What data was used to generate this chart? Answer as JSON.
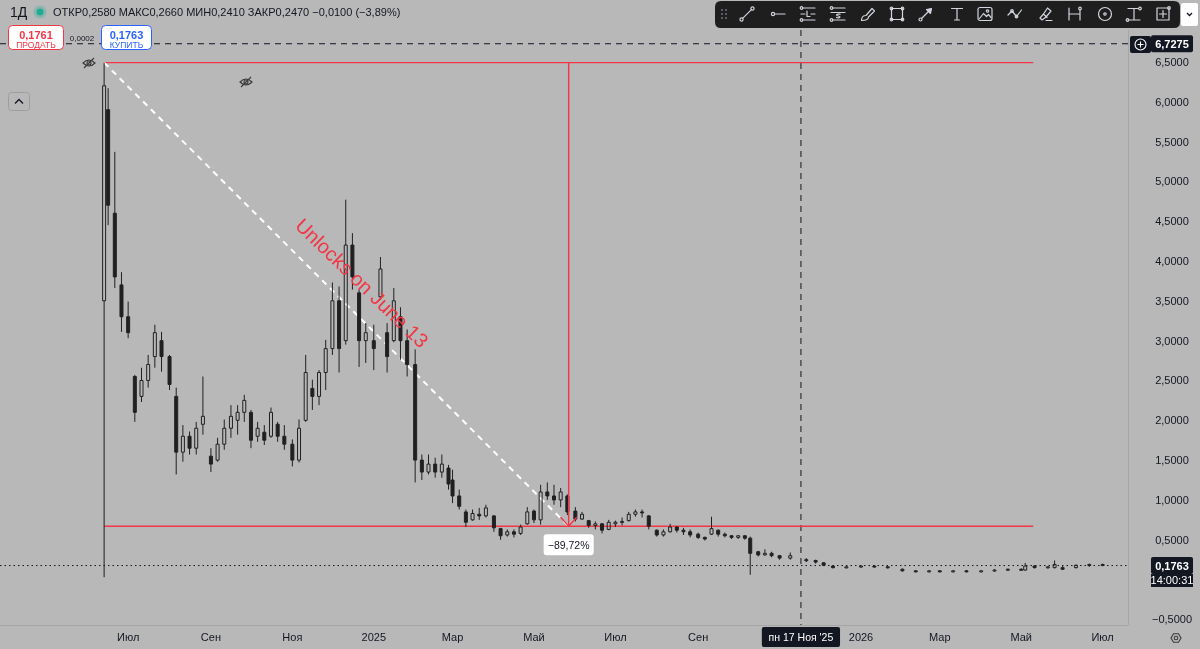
{
  "chart_data": {
    "type": "candlestick",
    "title": "1Д",
    "subtitle": "ОТКР0,2580 МАКС0,2660 МИН0,2410 ЗАКР0,2470 −0,0100 (−3,89%)",
    "color": "#202020",
    "x": [
      "2024-06-13",
      "2024-06-16",
      "2024-06-21",
      "2024-06-26",
      "2024-07-01",
      "2024-07-06",
      "2024-07-11",
      "2024-07-16",
      "2024-07-21",
      "2024-07-26",
      "2024-08-01",
      "2024-08-06",
      "2024-08-11",
      "2024-08-16",
      "2024-08-21",
      "2024-08-26",
      "2024-09-01",
      "2024-09-06",
      "2024-09-11",
      "2024-09-16",
      "2024-09-21",
      "2024-09-26",
      "2024-10-01",
      "2024-10-06",
      "2024-10-11",
      "2024-10-16",
      "2024-10-21",
      "2024-10-26",
      "2024-11-01",
      "2024-11-06",
      "2024-11-11",
      "2024-11-16",
      "2024-11-21",
      "2024-11-26",
      "2024-12-01",
      "2024-12-06",
      "2024-12-11",
      "2024-12-16",
      "2024-12-21",
      "2024-12-26",
      "2025-01-01",
      "2025-01-06",
      "2025-01-11",
      "2025-01-16",
      "2025-01-21",
      "2025-01-26",
      "2025-02-01",
      "2025-02-06",
      "2025-02-11",
      "2025-02-16",
      "2025-02-21",
      "2025-02-26",
      "2025-03-01",
      "2025-03-06",
      "2025-03-11",
      "2025-03-16",
      "2025-03-21",
      "2025-03-26",
      "2025-04-01",
      "2025-04-06",
      "2025-04-11",
      "2025-04-16",
      "2025-04-21",
      "2025-04-26",
      "2025-05-01",
      "2025-05-06",
      "2025-05-11",
      "2025-05-16",
      "2025-05-21",
      "2025-05-26",
      "2025-06-01",
      "2025-06-06",
      "2025-06-11",
      "2025-06-16",
      "2025-06-21",
      "2025-06-26",
      "2025-07-01",
      "2025-07-06",
      "2025-07-11",
      "2025-07-16",
      "2025-07-21",
      "2025-07-26",
      "2025-08-01",
      "2025-08-06",
      "2025-08-11",
      "2025-08-16",
      "2025-08-21",
      "2025-08-26",
      "2025-09-01",
      "2025-09-06",
      "2025-09-11",
      "2025-09-16",
      "2025-09-21",
      "2025-09-26",
      "2025-10-01",
      "2025-10-06",
      "2025-10-10",
      "2025-10-16",
      "2025-10-21",
      "2025-10-26",
      "2025-11-01",
      "2025-11-09",
      "2025-11-21",
      "2025-11-28",
      "2025-12-04",
      "2025-12-11",
      "2025-12-21",
      "2026-01-01",
      "2026-01-11",
      "2026-01-21",
      "2026-02-01",
      "2026-02-11",
      "2026-02-21",
      "2026-03-01",
      "2026-03-11",
      "2026-03-21",
      "2026-04-01",
      "2026-04-11",
      "2026-04-21",
      "2026-05-01",
      "2026-05-04",
      "2026-05-11",
      "2026-05-21",
      "2026-05-26",
      "2026-06-01",
      "2026-06-11",
      "2026-06-21",
      "2026-07-01"
    ],
    "ohlc": [
      [
        3.5,
        6.49,
        0.03,
        6.2
      ],
      [
        5.9,
        6.17,
        4.45,
        4.7
      ],
      [
        4.6,
        5.37,
        3.66,
        3.8
      ],
      [
        3.7,
        3.86,
        3.11,
        3.3
      ],
      [
        3.3,
        3.49,
        3.03,
        3.1
      ],
      [
        2.55,
        2.57,
        1.98,
        2.1
      ],
      [
        2.3,
        2.66,
        2.23,
        2.5
      ],
      [
        2.5,
        2.82,
        2.41,
        2.7
      ],
      [
        2.8,
        3.2,
        2.66,
        3.1
      ],
      [
        3.0,
        3.11,
        2.61,
        2.8
      ],
      [
        2.8,
        2.82,
        2.38,
        2.45
      ],
      [
        2.3,
        2.41,
        1.32,
        1.6
      ],
      [
        1.6,
        1.94,
        1.48,
        1.8
      ],
      [
        1.8,
        1.86,
        1.57,
        1.65
      ],
      [
        1.65,
        1.98,
        1.57,
        1.9
      ],
      [
        1.95,
        2.55,
        1.82,
        2.05
      ],
      [
        1.55,
        1.65,
        1.35,
        1.45
      ],
      [
        1.5,
        1.78,
        1.48,
        1.7
      ],
      [
        1.7,
        2.01,
        1.63,
        1.9
      ],
      [
        1.9,
        2.19,
        1.78,
        2.05
      ],
      [
        2.0,
        2.19,
        1.82,
        2.1
      ],
      [
        2.1,
        2.32,
        1.98,
        2.25
      ],
      [
        2.1,
        2.13,
        1.65,
        1.75
      ],
      [
        1.8,
        1.98,
        1.73,
        1.9
      ],
      [
        1.85,
        1.94,
        1.69,
        1.75
      ],
      [
        1.8,
        2.16,
        1.78,
        2.1
      ],
      [
        1.95,
        1.98,
        1.73,
        1.8
      ],
      [
        1.8,
        1.94,
        1.63,
        1.7
      ],
      [
        1.7,
        1.76,
        1.42,
        1.5
      ],
      [
        1.5,
        2.01,
        1.47,
        1.9
      ],
      [
        2.0,
        2.82,
        1.98,
        2.6
      ],
      [
        2.4,
        2.51,
        2.13,
        2.3
      ],
      [
        2.3,
        2.63,
        2.19,
        2.6
      ],
      [
        2.6,
        3.01,
        2.38,
        2.9
      ],
      [
        2.9,
        3.73,
        2.82,
        3.5
      ],
      [
        3.5,
        3.68,
        2.6,
        2.9
      ],
      [
        3.0,
        4.77,
        2.95,
        4.2
      ],
      [
        4.2,
        4.35,
        3.64,
        3.8
      ],
      [
        3.6,
        3.64,
        2.67,
        3.0
      ],
      [
        3.0,
        3.22,
        2.72,
        3.1
      ],
      [
        3.0,
        3.2,
        2.63,
        2.9
      ],
      [
        3.55,
        4.05,
        3.51,
        3.9
      ],
      [
        3.1,
        3.22,
        2.6,
        2.8
      ],
      [
        3.0,
        3.66,
        2.98,
        3.5
      ],
      [
        3.3,
        3.42,
        2.76,
        3.0
      ],
      [
        3.0,
        3.14,
        2.55,
        2.7
      ],
      [
        2.7,
        2.89,
        1.22,
        1.5
      ],
      [
        1.5,
        1.57,
        1.25,
        1.35
      ],
      [
        1.35,
        1.57,
        1.32,
        1.45
      ],
      [
        1.45,
        1.53,
        1.28,
        1.35
      ],
      [
        1.35,
        1.57,
        1.28,
        1.45
      ],
      [
        1.4,
        1.44,
        1.13,
        1.2
      ],
      [
        1.25,
        1.38,
        0.96,
        1.05
      ],
      [
        1.05,
        1.13,
        0.88,
        0.92
      ],
      [
        0.85,
        0.88,
        0.66,
        0.72
      ],
      [
        0.75,
        0.88,
        0.74,
        0.83
      ],
      [
        0.82,
        0.9,
        0.75,
        0.8
      ],
      [
        0.8,
        0.94,
        0.78,
        0.9
      ],
      [
        0.8,
        0.81,
        0.6,
        0.65
      ],
      [
        0.64,
        0.65,
        0.5,
        0.55
      ],
      [
        0.56,
        0.63,
        0.54,
        0.6
      ],
      [
        0.6,
        0.63,
        0.53,
        0.57
      ],
      [
        0.58,
        0.69,
        0.56,
        0.66
      ],
      [
        0.7,
        0.91,
        0.69,
        0.85
      ],
      [
        0.86,
        0.88,
        0.71,
        0.75
      ],
      [
        0.75,
        1.19,
        0.69,
        1.1
      ],
      [
        1.1,
        1.22,
        1.0,
        1.05
      ],
      [
        1.05,
        1.19,
        0.94,
        1.0
      ],
      [
        1.0,
        1.15,
        0.91,
        1.1
      ],
      [
        1.05,
        1.07,
        0.81,
        0.85
      ],
      [
        0.86,
        0.91,
        0.73,
        0.76
      ],
      [
        0.76,
        0.85,
        0.75,
        0.82
      ],
      [
        0.74,
        0.75,
        0.65,
        0.68
      ],
      [
        0.68,
        0.73,
        0.63,
        0.7
      ],
      [
        0.7,
        0.71,
        0.58,
        0.62
      ],
      [
        0.63,
        0.75,
        0.62,
        0.72
      ],
      [
        0.7,
        0.74,
        0.66,
        0.72
      ],
      [
        0.72,
        0.78,
        0.68,
        0.73
      ],
      [
        0.74,
        0.85,
        0.73,
        0.82
      ],
      [
        0.82,
        0.88,
        0.79,
        0.85
      ],
      [
        0.85,
        0.88,
        0.78,
        0.84
      ],
      [
        0.8,
        0.81,
        0.63,
        0.67
      ],
      [
        0.62,
        0.63,
        0.54,
        0.56
      ],
      [
        0.56,
        0.63,
        0.54,
        0.6
      ],
      [
        0.6,
        0.7,
        0.59,
        0.66
      ],
      [
        0.66,
        0.67,
        0.59,
        0.62
      ],
      [
        0.62,
        0.65,
        0.56,
        0.6
      ],
      [
        0.6,
        0.63,
        0.53,
        0.56
      ],
      [
        0.57,
        0.59,
        0.51,
        0.53
      ],
      [
        0.53,
        0.54,
        0.49,
        0.51
      ],
      [
        0.57,
        0.79,
        0.56,
        0.64
      ],
      [
        0.62,
        0.63,
        0.54,
        0.57
      ],
      [
        0.57,
        0.59,
        0.53,
        0.55
      ],
      [
        0.55,
        0.56,
        0.51,
        0.53
      ],
      [
        0.53,
        0.56,
        0.51,
        0.55
      ],
      [
        0.55,
        0.56,
        0.5,
        0.52
      ],
      [
        0.52,
        0.54,
        0.06,
        0.33
      ],
      [
        0.35,
        0.36,
        0.29,
        0.31
      ],
      [
        0.31,
        0.38,
        0.3,
        0.33
      ],
      [
        0.33,
        0.35,
        0.28,
        0.3
      ],
      [
        0.3,
        0.31,
        0.25,
        0.27
      ],
      [
        0.27,
        0.34,
        0.25,
        0.3
      ],
      [
        0.25,
        0.27,
        0.22,
        0.24
      ],
      [
        0.24,
        0.25,
        0.2,
        0.22
      ],
      [
        0.21,
        0.22,
        0.17,
        0.18
      ],
      [
        0.17,
        0.18,
        0.14,
        0.15
      ],
      [
        0.15,
        0.17,
        0.14,
        0.16
      ],
      [
        0.16,
        0.18,
        0.15,
        0.17
      ],
      [
        0.17,
        0.18,
        0.15,
        0.16
      ],
      [
        0.16,
        0.17,
        0.14,
        0.15
      ],
      [
        0.13,
        0.14,
        0.1,
        0.11
      ],
      [
        0.11,
        0.12,
        0.09,
        0.1
      ],
      [
        0.1,
        0.12,
        0.09,
        0.11
      ],
      [
        0.11,
        0.12,
        0.09,
        0.1
      ],
      [
        0.1,
        0.12,
        0.09,
        0.11
      ],
      [
        0.11,
        0.12,
        0.09,
        0.1
      ],
      [
        0.1,
        0.12,
        0.09,
        0.11
      ],
      [
        0.11,
        0.13,
        0.1,
        0.12
      ],
      [
        0.12,
        0.14,
        0.11,
        0.13
      ],
      [
        0.13,
        0.14,
        0.11,
        0.12
      ],
      [
        0.12,
        0.21,
        0.11,
        0.17
      ],
      [
        0.17,
        0.18,
        0.14,
        0.15
      ],
      [
        0.15,
        0.17,
        0.14,
        0.16
      ],
      [
        0.15,
        0.24,
        0.14,
        0.19
      ],
      [
        0.15,
        0.17,
        0.12,
        0.13
      ],
      [
        0.15,
        0.19,
        0.14,
        0.18
      ],
      [
        0.18,
        0.2,
        0.16,
        0.19
      ],
      [
        0.19,
        0.2,
        0.17,
        0.1763
      ]
    ],
    "series": [
      {
        "type": "line",
        "color": "#f23645",
        "x": [
          "2024-06-13",
          "2026-05-10"
        ],
        "values": [
          6.49,
          6.49
        ]
      },
      {
        "type": "line",
        "color": "#f23645",
        "x": [
          "2024-06-13",
          "2026-05-10"
        ],
        "values": [
          0.67,
          0.67
        ]
      },
      {
        "type": "line",
        "color": "#ffffff",
        "line_style": "dashed",
        "x": [
          "2024-06-13",
          "2025-05-27"
        ],
        "values": [
          6.49,
          0.67
        ]
      }
    ],
    "xlim": [
      "2024-03-27",
      "2026-07-20"
    ],
    "ylim": [
      -0.57,
      6.9
    ],
    "xticks": [
      {
        "value": "2024-07-01",
        "label": "Июл"
      },
      {
        "value": "2024-09-01",
        "label": "Сен"
      },
      {
        "value": "2024-11-01",
        "label": "Ноя"
      },
      {
        "value": "2025-01-01",
        "label": "2025"
      },
      {
        "value": "2025-03-01",
        "label": "Мар"
      },
      {
        "value": "2025-05-01",
        "label": "Май"
      },
      {
        "value": "2025-07-01",
        "label": "Июл"
      },
      {
        "value": "2025-09-01",
        "label": "Сен"
      },
      {
        "value": "2026-01-01",
        "label": "2026"
      },
      {
        "value": "2026-03-01",
        "label": "Мар"
      },
      {
        "value": "2026-05-01",
        "label": "Май"
      },
      {
        "value": "2026-07-01",
        "label": "Июл"
      }
    ],
    "yticks": [
      {
        "value": -0.5,
        "label": "−0,5000"
      },
      {
        "value": 0.5,
        "label": "0,5000"
      },
      {
        "value": 1,
        "label": "1,0000"
      },
      {
        "value": 1.5,
        "label": "1,5000"
      },
      {
        "value": 2,
        "label": "2,0000"
      },
      {
        "value": 2.5,
        "label": "2,5000"
      },
      {
        "value": 3,
        "label": "3,0000"
      },
      {
        "value": 3.5,
        "label": "3,5000"
      },
      {
        "value": 4,
        "label": "4,0000"
      },
      {
        "value": 4.5,
        "label": "4,5000"
      },
      {
        "value": 5,
        "label": "5,0000"
      },
      {
        "value": 5.5,
        "label": "5,5000"
      },
      {
        "value": 6,
        "label": "6,0000"
      },
      {
        "value": 6.5,
        "label": "6,5000"
      }
    ],
    "ref_lines": [
      {
        "axis": "y",
        "value": 6.7275,
        "label": "6,7275",
        "line_style": "dashed",
        "color": "#131722"
      },
      {
        "axis": "x",
        "value": "2025-11-17",
        "label": "пн 17 Ноя '25",
        "line_style": "dashed",
        "color": "#131722"
      },
      {
        "axis": "y",
        "value": 0.1763,
        "label": "0,1763",
        "line_style": "dotted",
        "color": "#131722"
      }
    ],
    "annotations": [
      "Unlocks on June 13",
      {
        "text": "−89,72%",
        "x": "2025-05-27",
        "y": 0.67
      },
      "0,1761",
      "ПРОДАТЬ",
      "0,0002",
      "0,1763",
      "КУПИТЬ",
      "14:00:31"
    ]
  }
}
